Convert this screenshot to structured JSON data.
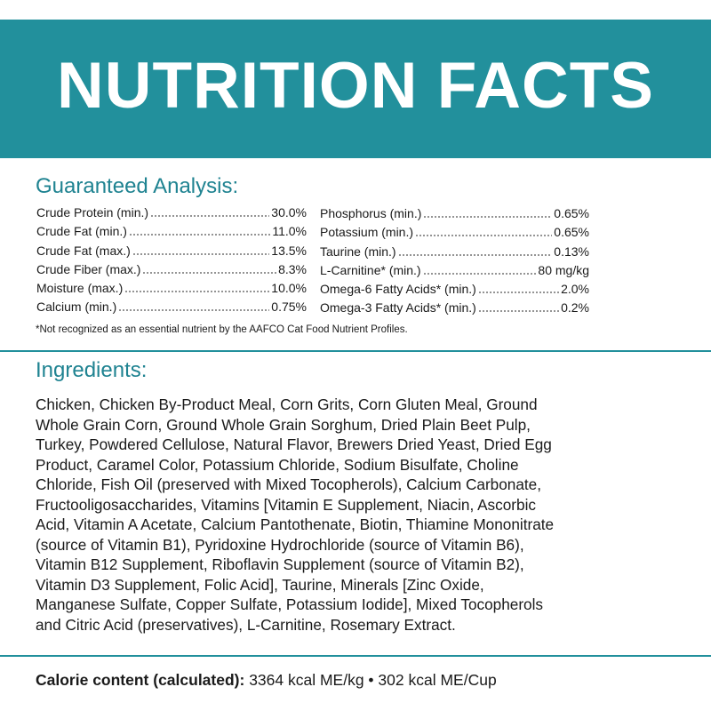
{
  "header": {
    "title": "NUTRITION FACTS"
  },
  "guaranteed_analysis": {
    "heading": "Guaranteed Analysis:",
    "left": [
      {
        "label": "Crude Protein (min.)",
        "value": "30.0%"
      },
      {
        "label": "Crude Fat (min.)",
        "value": "11.0%"
      },
      {
        "label": "Crude Fat (max.)",
        "value": "13.5%"
      },
      {
        "label": "Crude Fiber (max.)",
        "value": "8.3%"
      },
      {
        "label": "Moisture (max.)",
        "value": "10.0%"
      },
      {
        "label": "Calcium (min.)",
        "value": "0.75%"
      }
    ],
    "right": [
      {
        "label": "Phosphorus (min.)",
        "value": "0.65%"
      },
      {
        "label": "Potassium (min.)",
        "value": "0.65%"
      },
      {
        "label": "Taurine (min.)",
        "value": "0.13%"
      },
      {
        "label": "L-Carnitine* (min.)",
        "value": "80 mg/kg"
      },
      {
        "label": "Omega-6 Fatty Acids* (min.)",
        "value": "2.0%"
      },
      {
        "label": "Omega-3 Fatty Acids* (min.)",
        "value": "0.2%"
      }
    ],
    "footnote": "*Not recognized as an essential nutrient by the AAFCO Cat Food Nutrient Profiles."
  },
  "ingredients": {
    "heading": "Ingredients:",
    "lines": [
      "Chicken, Chicken By-Product Meal, Corn Grits, Corn Gluten Meal, Ground",
      "Whole Grain Corn, Ground Whole Grain Sorghum, Dried Plain Beet Pulp,",
      "Turkey, Powdered Cellulose, Natural Flavor, Brewers Dried Yeast, Dried Egg",
      "Product, Caramel Color, Potassium Chloride, Sodium Bisulfate, Choline",
      "Chloride, Fish Oil (preserved with Mixed Tocopherols), Calcium Carbonate,",
      "Fructooligosaccharides, Vitamins [Vitamin E Supplement, Niacin, Ascorbic",
      "Acid, Vitamin A Acetate, Calcium Pantothenate, Biotin, Thiamine Mononitrate",
      "(source of Vitamin B1), Pyridoxine Hydrochloride (source of Vitamin B6),",
      "Vitamin B12 Supplement, Riboflavin Supplement (source of Vitamin B2),",
      "Vitamin D3 Supplement, Folic Acid], Taurine, Minerals [Zinc Oxide,",
      "Manganese Sulfate, Copper Sulfate, Potassium Iodide], Mixed Tocopherols",
      "and Citric Acid (preservatives), L-Carnitine, Rosemary Extract."
    ]
  },
  "calorie": {
    "label": "Calorie content (calculated):",
    "value": "3364 kcal ME/kg • 302 kcal ME/Cup"
  }
}
